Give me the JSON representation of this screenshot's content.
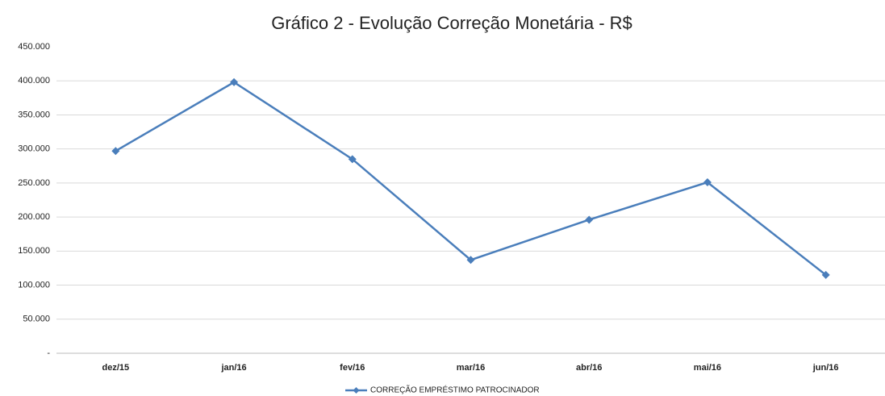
{
  "chart_data": {
    "type": "line",
    "title": "Gráfico 2 - Evolução Correção Monetária - R$",
    "categories": [
      "dez/15",
      "jan/16",
      "fev/16",
      "mar/16",
      "abr/16",
      "mai/16",
      "jun/16"
    ],
    "series": [
      {
        "name": "CORREÇÃO EMPRÉSTIMO PATROCINADOR",
        "color": "#4a7ebb",
        "values": [
          297000,
          398000,
          285000,
          137000,
          196000,
          251000,
          115000
        ]
      }
    ],
    "ylim": [
      0,
      450000
    ],
    "yticks": [
      {
        "value": 0,
        "label": "-"
      },
      {
        "value": 50000,
        "label": "50.000"
      },
      {
        "value": 100000,
        "label": "100.000"
      },
      {
        "value": 150000,
        "label": "150.000"
      },
      {
        "value": 200000,
        "label": "200.000"
      },
      {
        "value": 250000,
        "label": "250.000"
      },
      {
        "value": 300000,
        "label": "300.000"
      },
      {
        "value": 350000,
        "label": "350.000"
      },
      {
        "value": 400000,
        "label": "400.000"
      },
      {
        "value": 450000,
        "label": "450.000"
      }
    ],
    "grid": true,
    "legend": "bottom"
  }
}
